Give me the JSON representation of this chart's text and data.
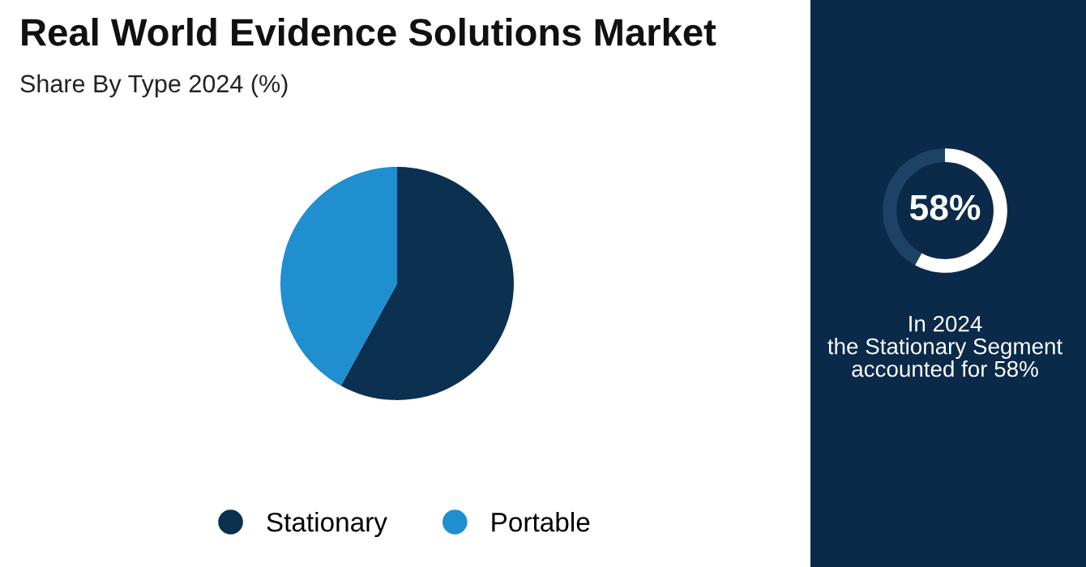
{
  "chart_data": [
    {
      "type": "pie",
      "title": "Real World Evidence Solutions Market",
      "subtitle": "Share By Type 2024 (%)",
      "categories": [
        "Stationary",
        "Portable"
      ],
      "values": [
        58,
        42
      ],
      "colors": [
        "#0b3050",
        "#1f8fcf"
      ],
      "legend": "bottom"
    },
    {
      "type": "donut",
      "categories": [
        null,
        null
      ],
      "values": [
        58,
        42
      ],
      "colors": [
        "#ffffff",
        "#1e4266"
      ],
      "value_labels": [
        "58%",
        null
      ],
      "annotations": [
        "In 2024\nthe Stationary Segment\naccounted for 58%"
      ]
    }
  ]
}
